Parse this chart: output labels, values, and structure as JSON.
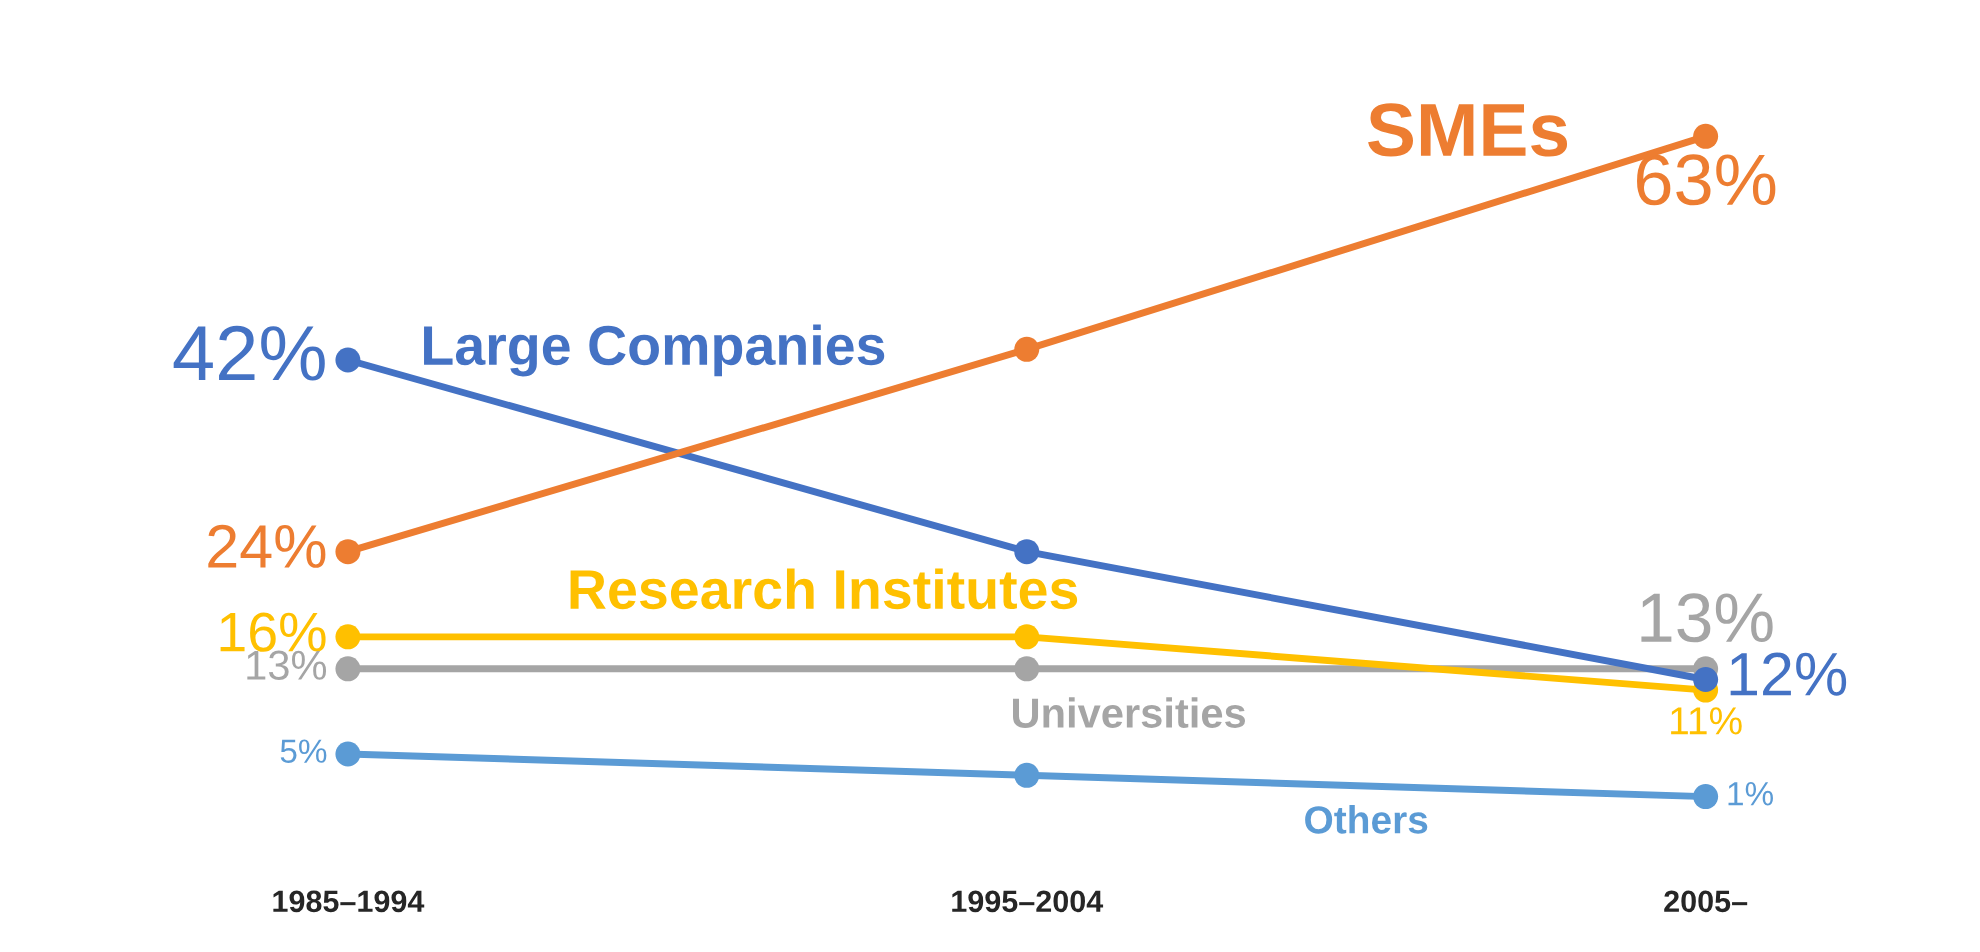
{
  "chart_data": {
    "type": "line",
    "categories": [
      "1985–1994",
      "1995–2004",
      "2005–"
    ],
    "series": [
      {
        "name": "SMEs",
        "color": "#ed7d31",
        "values": [
          24,
          43,
          63
        ],
        "value_labels": [
          "24%",
          null,
          "63%"
        ]
      },
      {
        "name": "Large Companies",
        "color": "#4472c4",
        "values": [
          42,
          24,
          12
        ],
        "value_labels": [
          "42%",
          null,
          "12%"
        ]
      },
      {
        "name": "Research Institutes",
        "color": "#ffc000",
        "values": [
          16,
          16,
          11
        ],
        "value_labels": [
          "16%",
          null,
          "11%"
        ]
      },
      {
        "name": "Universities",
        "color": "#a5a5a5",
        "values": [
          13,
          13,
          13
        ],
        "value_labels": [
          "13%",
          null,
          "13%"
        ]
      },
      {
        "name": "Others",
        "color": "#5b9bd5",
        "values": [
          5,
          3,
          1
        ],
        "value_labels": [
          "5%",
          null,
          "1%"
        ]
      }
    ],
    "marker": "circle",
    "line_style": "solid",
    "grid": false
  }
}
